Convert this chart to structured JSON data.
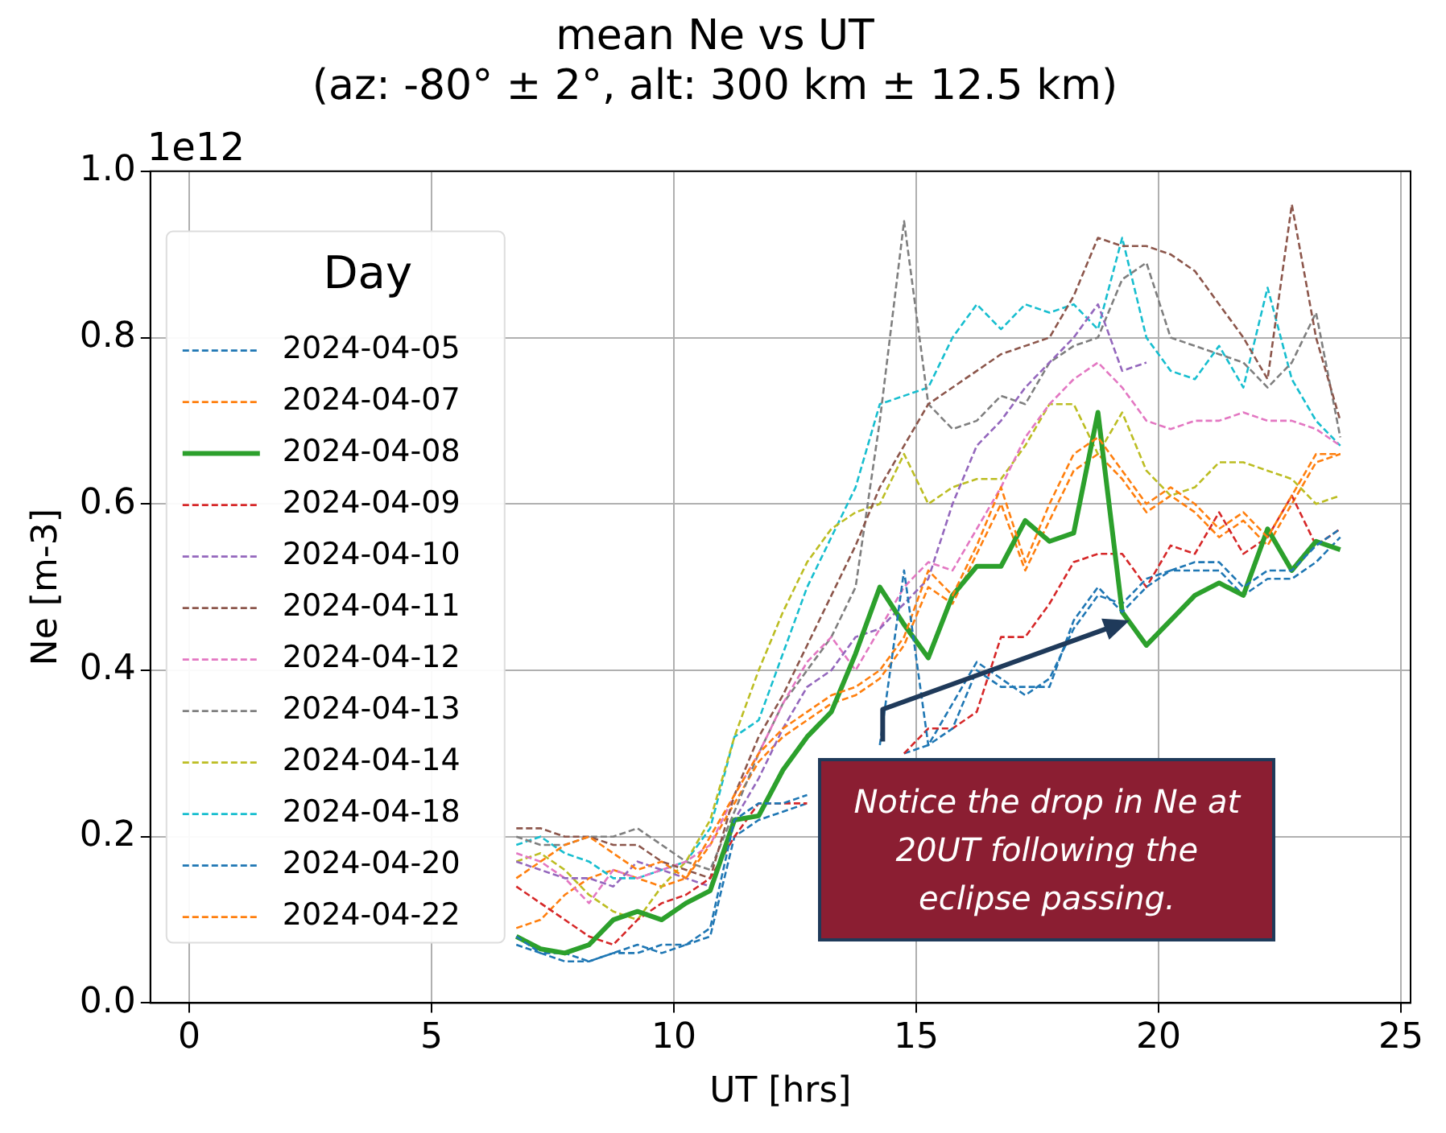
{
  "chart_data": {
    "type": "line",
    "title": "mean Ne vs UT",
    "subtitle": "(az: -80° ± 2°, alt: 300 km ± 12.5 km)",
    "xlabel": "UT [hrs]",
    "ylabel": "Ne [m-3]",
    "legend_title": "Day",
    "legend": "left",
    "grid": true,
    "marker": "none",
    "line_style": "dashed",
    "xlim": [
      -0.8,
      25.2
    ],
    "xticks": [
      0,
      5,
      10,
      15,
      20,
      25
    ],
    "ylim": [
      0,
      1.0
    ],
    "yticks": [
      {
        "value": 0,
        "label": "0.0"
      },
      {
        "value": 0.2,
        "label": "0.2"
      },
      {
        "value": 0.4,
        "label": "0.4"
      },
      {
        "value": 0.6,
        "label": "0.6"
      },
      {
        "value": 0.8,
        "label": "0.8"
      },
      {
        "value": 1.0,
        "label": "1.0"
      }
    ],
    "annotations": [
      "1e12",
      "Notice the drop in Ne at 20UT following the eclipse passing."
    ],
    "x": [
      6.75,
      7.25,
      7.75,
      8.25,
      8.75,
      9.25,
      9.75,
      10.25,
      10.75,
      11.25,
      11.75,
      12.25,
      12.75,
      13.25,
      13.75,
      14.25,
      14.75,
      15.25,
      15.75,
      16.25,
      16.75,
      17.25,
      17.75,
      18.25,
      18.75,
      19.25,
      19.75,
      20.25,
      20.75,
      21.25,
      21.75,
      22.25,
      22.75,
      23.25,
      23.75
    ],
    "series": [
      {
        "name": "2024-04-05",
        "color": "#1f77b4",
        "values": [
          0.08,
          0.06,
          0.05,
          0.05,
          0.06,
          0.07,
          0.06,
          0.07,
          0.09,
          0.22,
          0.24,
          0.24,
          0.25,
          null,
          null,
          0.31,
          0.52,
          0.31,
          0.33,
          0.4,
          0.38,
          0.38,
          0.38,
          0.46,
          0.5,
          0.47,
          0.5,
          0.52,
          0.53,
          0.53,
          0.5,
          0.52,
          0.52,
          0.55,
          0.57
        ]
      },
      {
        "name": "2024-04-07",
        "color": "#ff7f0e",
        "values": [
          0.15,
          0.17,
          0.19,
          0.2,
          0.18,
          0.16,
          0.17,
          0.15,
          0.2,
          0.25,
          0.3,
          0.33,
          0.35,
          0.37,
          0.38,
          0.4,
          0.44,
          0.52,
          0.49,
          0.55,
          0.62,
          0.53,
          0.6,
          0.66,
          0.68,
          0.64,
          0.6,
          0.62,
          0.6,
          0.57,
          0.59,
          0.56,
          0.61,
          0.66,
          0.66
        ]
      },
      {
        "name": "2024-04-08",
        "color": "#2ca02c",
        "line_style": "solid",
        "values": [
          0.08,
          0.065,
          0.06,
          0.07,
          0.1,
          0.11,
          0.1,
          0.12,
          0.135,
          0.22,
          0.225,
          0.28,
          0.32,
          0.35,
          0.42,
          0.5,
          0.455,
          0.415,
          0.49,
          0.525,
          0.525,
          0.58,
          0.555,
          0.565,
          0.71,
          0.47,
          0.43,
          0.46,
          0.49,
          0.505,
          0.49,
          0.57,
          0.52,
          0.555,
          0.545
        ]
      },
      {
        "name": "2024-04-09",
        "color": "#d62728",
        "values": [
          0.14,
          0.12,
          0.1,
          0.08,
          0.07,
          0.1,
          0.12,
          0.13,
          0.15,
          0.2,
          0.24,
          0.24,
          0.24,
          null,
          null,
          null,
          0.3,
          0.33,
          0.33,
          0.35,
          0.44,
          0.44,
          0.48,
          0.53,
          0.54,
          0.54,
          0.5,
          0.55,
          0.54,
          0.59,
          0.54,
          0.56,
          0.61,
          0.55,
          0.57
        ]
      },
      {
        "name": "2024-04-10",
        "color": "#9467bd",
        "values": [
          0.17,
          0.16,
          0.15,
          0.15,
          0.14,
          0.17,
          0.16,
          0.15,
          0.14,
          0.22,
          0.27,
          0.33,
          0.38,
          0.4,
          0.44,
          0.45,
          0.48,
          0.51,
          0.6,
          0.67,
          0.7,
          0.74,
          0.77,
          0.8,
          0.84,
          0.76,
          0.77,
          null,
          null,
          null,
          null,
          null,
          null,
          null,
          null
        ]
      },
      {
        "name": "2024-04-11",
        "color": "#8c564b",
        "values": [
          0.21,
          0.21,
          0.2,
          0.2,
          0.19,
          0.19,
          0.17,
          0.16,
          0.15,
          0.25,
          0.32,
          0.37,
          0.43,
          0.49,
          0.55,
          0.62,
          0.67,
          0.72,
          0.74,
          0.76,
          0.78,
          0.79,
          0.8,
          0.85,
          0.92,
          0.91,
          0.91,
          0.9,
          0.88,
          0.84,
          0.8,
          0.75,
          0.96,
          0.8,
          0.7
        ]
      },
      {
        "name": "2024-04-12",
        "color": "#e377c2",
        "values": [
          0.18,
          0.17,
          0.15,
          0.12,
          0.16,
          0.15,
          0.16,
          0.17,
          0.19,
          0.25,
          0.3,
          0.36,
          0.41,
          0.44,
          0.4,
          0.45,
          0.5,
          0.53,
          0.52,
          0.57,
          0.62,
          0.68,
          0.72,
          0.75,
          0.77,
          0.74,
          0.7,
          0.69,
          0.7,
          0.7,
          0.71,
          0.7,
          0.7,
          0.69,
          0.67
        ]
      },
      {
        "name": "2024-04-13",
        "color": "#7f7f7f",
        "values": [
          0.2,
          0.19,
          0.19,
          0.2,
          0.2,
          0.21,
          0.19,
          0.17,
          0.16,
          0.23,
          0.3,
          0.36,
          0.4,
          0.44,
          0.5,
          0.7,
          0.94,
          0.72,
          0.69,
          0.7,
          0.73,
          0.72,
          0.77,
          0.79,
          0.8,
          0.87,
          0.89,
          0.8,
          0.79,
          0.78,
          0.77,
          0.74,
          0.77,
          0.83,
          0.68
        ]
      },
      {
        "name": "2024-04-14",
        "color": "#bcbd22",
        "values": [
          0.17,
          0.18,
          0.16,
          0.13,
          0.11,
          0.1,
          0.14,
          0.17,
          0.22,
          0.32,
          0.4,
          0.47,
          0.53,
          0.57,
          0.59,
          0.6,
          0.66,
          0.6,
          0.62,
          0.63,
          0.63,
          0.67,
          0.72,
          0.72,
          0.66,
          0.71,
          0.64,
          0.61,
          0.62,
          0.65,
          0.65,
          0.64,
          0.63,
          0.6,
          0.61
        ]
      },
      {
        "name": "2024-04-18",
        "color": "#17becf",
        "values": [
          0.19,
          0.2,
          0.18,
          0.17,
          0.15,
          0.15,
          0.16,
          0.17,
          0.21,
          0.32,
          0.34,
          0.42,
          0.5,
          0.56,
          0.62,
          0.72,
          0.73,
          0.74,
          0.8,
          0.84,
          0.81,
          0.84,
          0.83,
          0.84,
          0.81,
          0.92,
          0.8,
          0.76,
          0.75,
          0.79,
          0.74,
          0.86,
          0.75,
          0.7,
          0.67
        ]
      },
      {
        "name": "2024-04-20",
        "color": "#1f77b4",
        "values": [
          0.07,
          0.06,
          0.06,
          0.05,
          0.06,
          0.06,
          0.07,
          0.07,
          0.08,
          0.2,
          0.22,
          0.23,
          0.24,
          null,
          null,
          null,
          0.3,
          0.31,
          0.36,
          0.41,
          0.39,
          0.37,
          0.39,
          0.45,
          0.49,
          0.48,
          0.51,
          0.52,
          0.52,
          0.52,
          0.49,
          0.51,
          0.51,
          0.53,
          0.56
        ]
      },
      {
        "name": "2024-04-22",
        "color": "#ff7f0e",
        "values": [
          0.09,
          0.1,
          0.13,
          0.15,
          0.16,
          0.15,
          0.14,
          0.15,
          0.19,
          0.24,
          0.29,
          0.32,
          0.34,
          0.36,
          0.37,
          0.39,
          0.43,
          0.5,
          0.48,
          0.54,
          0.6,
          0.52,
          0.58,
          0.64,
          0.66,
          0.63,
          0.59,
          0.61,
          0.59,
          0.56,
          0.58,
          0.55,
          0.6,
          0.65,
          0.66
        ]
      }
    ]
  }
}
